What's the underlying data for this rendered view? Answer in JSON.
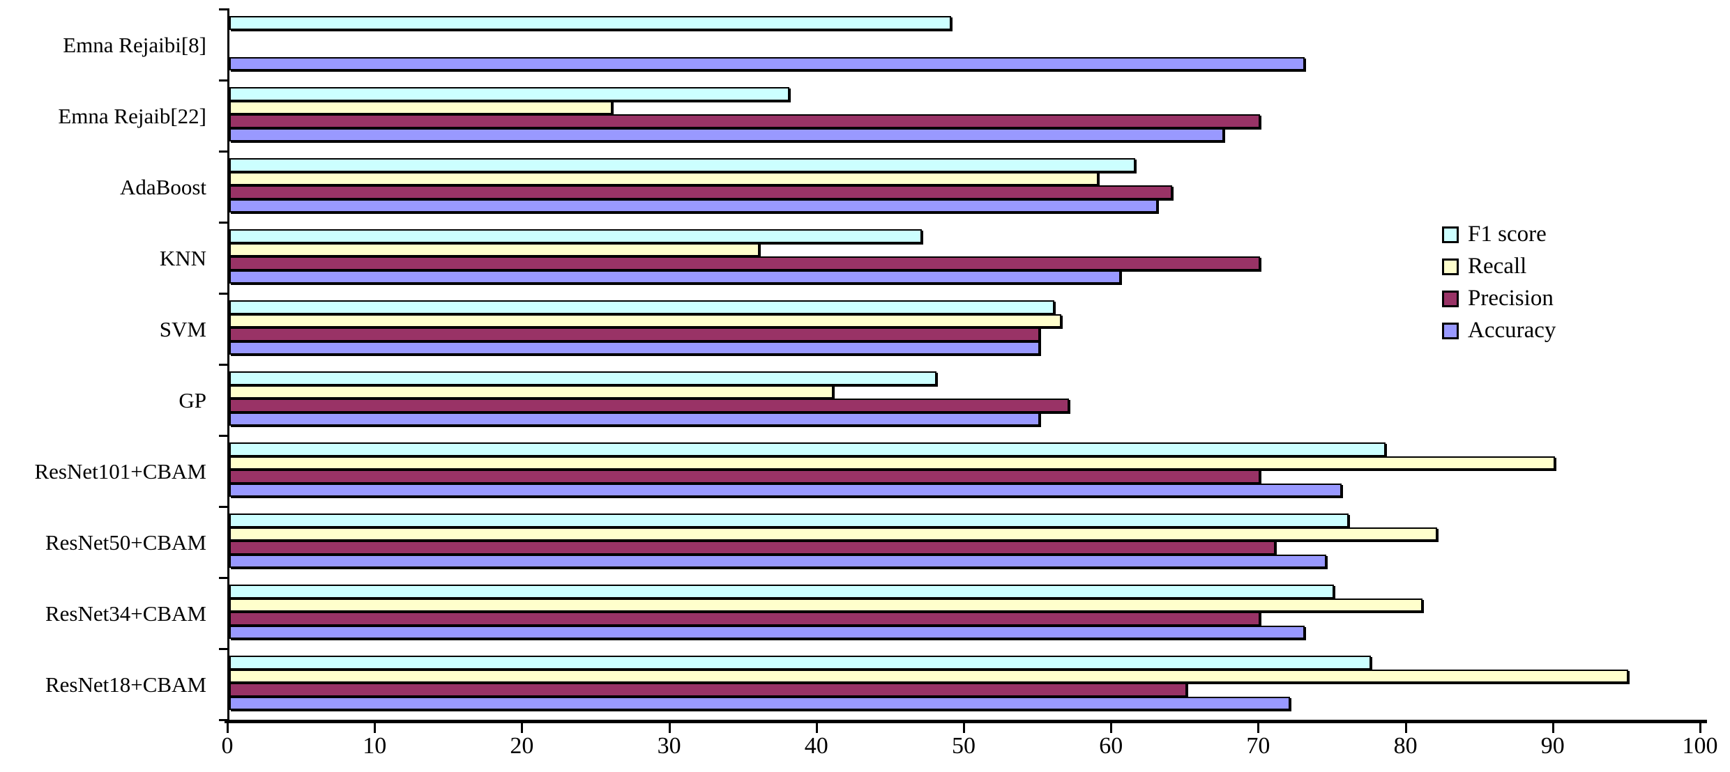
{
  "chart_data": {
    "type": "bar",
    "orientation": "horizontal",
    "title": "",
    "xlabel": "",
    "ylabel": "",
    "xlim": [
      0,
      100
    ],
    "x_ticks": [
      "0",
      "10",
      "20",
      "30",
      "40",
      "50",
      "60",
      "70",
      "80",
      "90",
      "100"
    ],
    "grid": false,
    "legend_position": "right",
    "categories": [
      "Emna Rejaibi[8]",
      "Emna Rejaib[22]",
      "AdaBoost",
      "KNN",
      "SVM",
      "GP",
      "ResNet101+CBAM",
      "ResNet50+CBAM",
      "ResNet34+CBAM",
      "ResNet18+CBAM"
    ],
    "series": [
      {
        "name": "F1 score",
        "color": "#CCFFFF",
        "values": [
          49,
          38,
          61.5,
          47,
          56,
          48,
          78.5,
          76,
          75,
          77.5
        ]
      },
      {
        "name": "Recall",
        "color": "#FFFFCC",
        "values": [
          null,
          26,
          59,
          36,
          56.5,
          41,
          90,
          82,
          81,
          95
        ]
      },
      {
        "name": "Precision",
        "color": "#993366",
        "values": [
          null,
          70,
          64,
          70,
          55,
          57,
          70,
          71,
          70,
          65
        ]
      },
      {
        "name": "Accuracy",
        "color": "#9999FF",
        "values": [
          73,
          67.5,
          63,
          60.5,
          55,
          55,
          75.5,
          74.5,
          73,
          72
        ]
      }
    ]
  },
  "colors": {
    "axis": "#000000",
    "background": "#FFFFFF",
    "bar_border": "#000000"
  }
}
